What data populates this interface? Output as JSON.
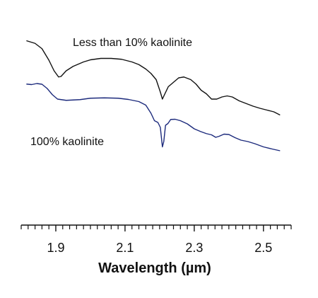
{
  "chart_data": {
    "type": "line",
    "title": "",
    "xlabel": "Wavelength (µm)",
    "ylabel": "",
    "xlim": [
      1.8,
      2.58
    ],
    "ylim": [
      0,
      1
    ],
    "x_ticks": [
      "1.9",
      "2.1",
      "2.3",
      "2.5"
    ],
    "x_tick_values": [
      1.9,
      2.1,
      2.3,
      2.5
    ],
    "x_minor_step": 0.02,
    "grid": false,
    "legend": "none (series labelled directly on plot)",
    "series": [
      {
        "name": "Less than 10% kaolinite",
        "color": "#111111",
        "points": [
          [
            1.815,
            0.93
          ],
          [
            1.84,
            0.915
          ],
          [
            1.86,
            0.885
          ],
          [
            1.88,
            0.82
          ],
          [
            1.895,
            0.76
          ],
          [
            1.908,
            0.725
          ],
          [
            1.915,
            0.728
          ],
          [
            1.93,
            0.76
          ],
          [
            1.95,
            0.785
          ],
          [
            1.98,
            0.81
          ],
          [
            2.0,
            0.822
          ],
          [
            2.03,
            0.83
          ],
          [
            2.06,
            0.83
          ],
          [
            2.09,
            0.825
          ],
          [
            2.12,
            0.81
          ],
          [
            2.14,
            0.795
          ],
          [
            2.16,
            0.77
          ],
          [
            2.175,
            0.745
          ],
          [
            2.19,
            0.71
          ],
          [
            2.202,
            0.64
          ],
          [
            2.208,
            0.6
          ],
          [
            2.214,
            0.625
          ],
          [
            2.225,
            0.67
          ],
          [
            2.24,
            0.695
          ],
          [
            2.255,
            0.72
          ],
          [
            2.27,
            0.725
          ],
          [
            2.29,
            0.71
          ],
          [
            2.305,
            0.685
          ],
          [
            2.32,
            0.65
          ],
          [
            2.335,
            0.63
          ],
          [
            2.35,
            0.6
          ],
          [
            2.365,
            0.6
          ],
          [
            2.38,
            0.612
          ],
          [
            2.395,
            0.618
          ],
          [
            2.41,
            0.612
          ],
          [
            2.43,
            0.59
          ],
          [
            2.45,
            0.575
          ],
          [
            2.47,
            0.56
          ],
          [
            2.49,
            0.548
          ],
          [
            2.51,
            0.538
          ],
          [
            2.53,
            0.528
          ],
          [
            2.548,
            0.51
          ]
        ]
      },
      {
        "name": "100% kaolinite",
        "color": "#1c2a7c",
        "points": [
          [
            1.815,
            0.685
          ],
          [
            1.83,
            0.682
          ],
          [
            1.845,
            0.688
          ],
          [
            1.86,
            0.684
          ],
          [
            1.875,
            0.66
          ],
          [
            1.89,
            0.625
          ],
          [
            1.905,
            0.6
          ],
          [
            1.93,
            0.593
          ],
          [
            1.97,
            0.597
          ],
          [
            2.0,
            0.605
          ],
          [
            2.04,
            0.607
          ],
          [
            2.08,
            0.605
          ],
          [
            2.11,
            0.598
          ],
          [
            2.14,
            0.586
          ],
          [
            2.16,
            0.566
          ],
          [
            2.175,
            0.52
          ],
          [
            2.185,
            0.478
          ],
          [
            2.195,
            0.468
          ],
          [
            2.202,
            0.44
          ],
          [
            2.208,
            0.33
          ],
          [
            2.212,
            0.36
          ],
          [
            2.217,
            0.452
          ],
          [
            2.224,
            0.462
          ],
          [
            2.232,
            0.485
          ],
          [
            2.245,
            0.486
          ],
          [
            2.26,
            0.478
          ],
          [
            2.28,
            0.46
          ],
          [
            2.3,
            0.432
          ],
          [
            2.318,
            0.417
          ],
          [
            2.335,
            0.405
          ],
          [
            2.35,
            0.398
          ],
          [
            2.362,
            0.384
          ],
          [
            2.372,
            0.39
          ],
          [
            2.386,
            0.402
          ],
          [
            2.4,
            0.4
          ],
          [
            2.418,
            0.382
          ],
          [
            2.435,
            0.368
          ],
          [
            2.455,
            0.36
          ],
          [
            2.475,
            0.348
          ],
          [
            2.5,
            0.33
          ],
          [
            2.525,
            0.318
          ],
          [
            2.548,
            0.308
          ]
        ]
      }
    ]
  }
}
